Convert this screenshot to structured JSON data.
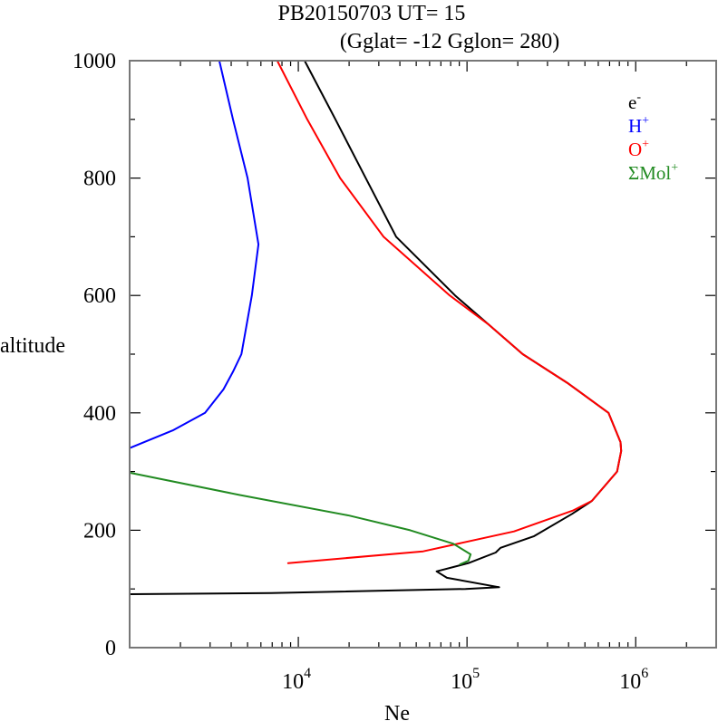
{
  "chart_data": {
    "type": "line",
    "title": "PB20150703   UT=  15",
    "subtitle": "(Gglat= -12   Gglon=  280)",
    "xlabel": "Ne",
    "ylabel": "altitude",
    "xscale": "log",
    "xlim": [
      1000,
      3000000
    ],
    "ylim": [
      0,
      1000
    ],
    "grid": false,
    "x_ticks": [
      {
        "value": 10000,
        "base": "10",
        "exp": "4"
      },
      {
        "value": 100000,
        "base": "10",
        "exp": "5"
      },
      {
        "value": 1000000,
        "base": "10",
        "exp": "6"
      }
    ],
    "y_ticks": [
      "0",
      "200",
      "400",
      "600",
      "800",
      "1000"
    ],
    "legend_position": "top-right",
    "series": [
      {
        "name": "e-",
        "label_base": "e",
        "label_sup": "-",
        "color": "#000000",
        "points": [
          [
            10900,
            1000
          ],
          [
            16600,
            900
          ],
          [
            25100,
            800
          ],
          [
            38000,
            700
          ],
          [
            85000,
            600
          ],
          [
            135000,
            550
          ],
          [
            214000,
            500
          ],
          [
            398000,
            450
          ],
          [
            690000,
            400
          ],
          [
            813000,
            350
          ],
          [
            820000,
            335
          ],
          [
            776000,
            300
          ],
          [
            550000,
            250
          ],
          [
            420000,
            228
          ],
          [
            250000,
            190
          ],
          [
            158000,
            170
          ],
          [
            148000,
            162
          ],
          [
            102000,
            144
          ],
          [
            66000,
            130
          ],
          [
            76000,
            119
          ],
          [
            155000,
            103
          ],
          [
            98000,
            100
          ],
          [
            6900,
            93
          ],
          [
            1000,
            91
          ]
        ]
      },
      {
        "name": "H+",
        "label_base": "H",
        "label_sup": "+",
        "color": "#0000ff",
        "points": [
          [
            3400,
            1000
          ],
          [
            4100,
            900
          ],
          [
            5000,
            800
          ],
          [
            5800,
            687
          ],
          [
            5300,
            600
          ],
          [
            4600,
            500
          ],
          [
            4100,
            470
          ],
          [
            3600,
            440
          ],
          [
            2800,
            400
          ],
          [
            1800,
            370
          ],
          [
            1000,
            340
          ]
        ]
      },
      {
        "name": "O+",
        "label_base": "O",
        "label_sup": "+",
        "color": "#ff0000",
        "points": [
          [
            7500,
            1000
          ],
          [
            11300,
            900
          ],
          [
            17700,
            800
          ],
          [
            32000,
            700
          ],
          [
            79000,
            600
          ],
          [
            135000,
            550
          ],
          [
            214000,
            500
          ],
          [
            398000,
            450
          ],
          [
            690000,
            400
          ],
          [
            813000,
            350
          ],
          [
            820000,
            335
          ],
          [
            776000,
            300
          ],
          [
            550000,
            250
          ],
          [
            427000,
            234
          ],
          [
            190000,
            198
          ],
          [
            55000,
            164
          ],
          [
            8700,
            144
          ]
        ]
      },
      {
        "name": "ΣMol+",
        "label_base": "ΣMol",
        "label_sup": "+",
        "color": "#228b22",
        "points": [
          [
            1000,
            298
          ],
          [
            4500,
            260
          ],
          [
            20000,
            225
          ],
          [
            46000,
            200
          ],
          [
            83000,
            177
          ],
          [
            105000,
            159
          ],
          [
            102000,
            148
          ],
          [
            91000,
            142
          ]
        ]
      }
    ]
  }
}
